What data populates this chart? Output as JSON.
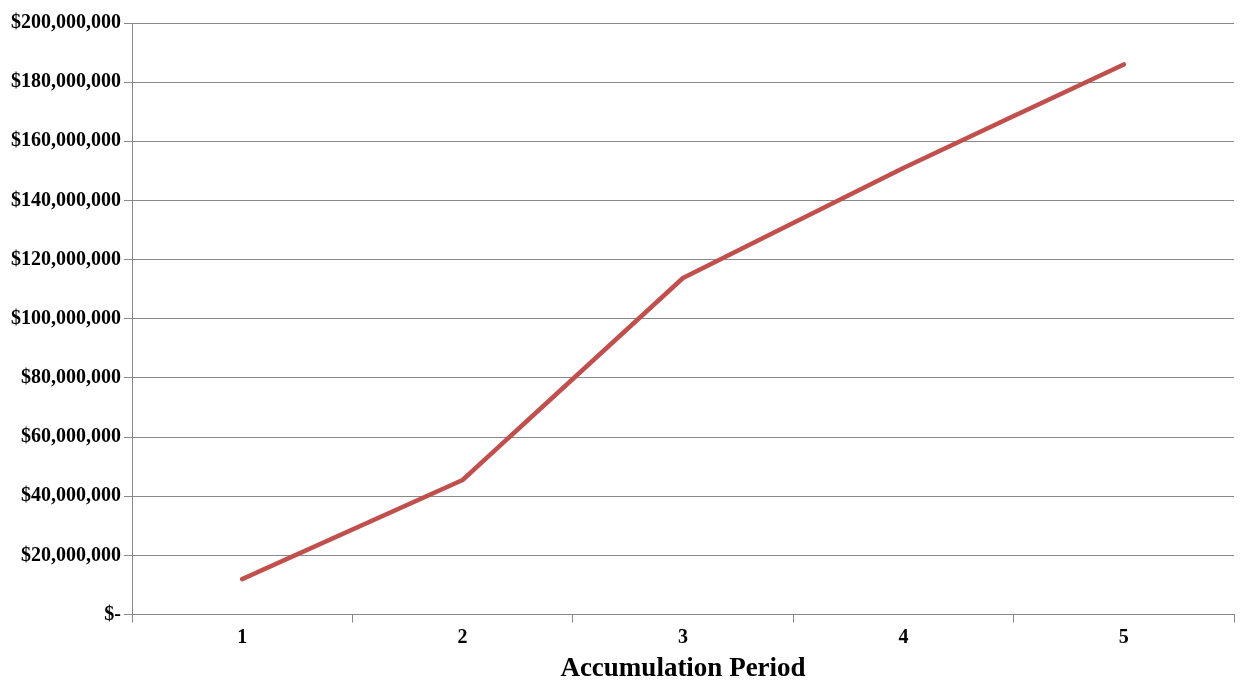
{
  "chart_data": {
    "type": "line",
    "xlabel": "Accumulation Period",
    "categories": [
      "1",
      "2",
      "3",
      "4",
      "5"
    ],
    "series": [
      {
        "color": "#c0504d",
        "values": [
          12000000,
          45500000,
          113800000,
          151000000,
          186000000
        ]
      }
    ],
    "ylim": [
      0,
      200000000
    ],
    "yticks": [
      {
        "value": 0,
        "label": "$-"
      },
      {
        "value": 20000000,
        "label": "$20,000,000"
      },
      {
        "value": 40000000,
        "label": "$40,000,000"
      },
      {
        "value": 60000000,
        "label": "$60,000,000"
      },
      {
        "value": 80000000,
        "label": "$80,000,000"
      },
      {
        "value": 100000000,
        "label": "$100,000,000"
      },
      {
        "value": 120000000,
        "label": "$120,000,000"
      },
      {
        "value": 140000000,
        "label": "$140,000,000"
      },
      {
        "value": 160000000,
        "label": "$160,000,000"
      },
      {
        "value": 180000000,
        "label": "$180,000,000"
      },
      {
        "value": 200000000,
        "label": "$200,000,000"
      }
    ],
    "grid": "y",
    "legend": false,
    "marker": "none",
    "line_style": "solid"
  }
}
